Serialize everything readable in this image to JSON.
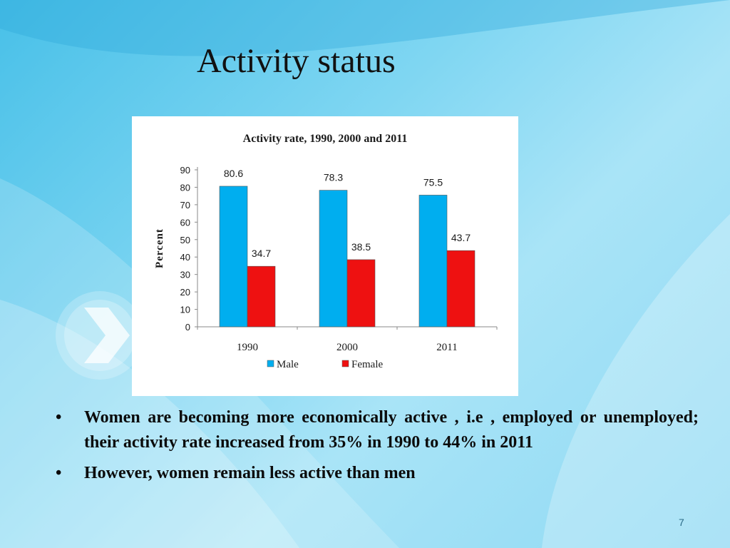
{
  "slide": {
    "title": "Activity status",
    "page_number": "7",
    "bullet_glyph": "•",
    "bullets": [
      "Women are becoming more economically active , i.e , employed or unemployed; their activity rate increased from 35% in 1990 to 44% in 2011",
      "However, women remain less active than men"
    ]
  },
  "colors": {
    "male": "#00aeef",
    "female": "#ee1111",
    "background": "#7fd6f2"
  },
  "icons": [
    "chevron-right-icon"
  ],
  "chart_data": {
    "type": "bar",
    "title": "Activity rate, 1990, 2000 and 2011",
    "ylabel": "Percent",
    "xlabel": "",
    "categories": [
      "1990",
      "2000",
      "2011"
    ],
    "series": [
      {
        "name": "Male",
        "values": [
          80.6,
          78.3,
          75.5
        ],
        "labels": [
          "80.6",
          "78.3",
          "75.5"
        ]
      },
      {
        "name": "Female",
        "values": [
          34.7,
          38.5,
          43.7
        ],
        "labels": [
          "34.7",
          "38.5",
          "43.7"
        ]
      }
    ],
    "ylim": [
      0,
      90
    ],
    "yticks": [
      "0",
      "10",
      "20",
      "30",
      "40",
      "50",
      "60",
      "70",
      "80",
      "90"
    ],
    "grid": false,
    "legend_position": "bottom"
  }
}
